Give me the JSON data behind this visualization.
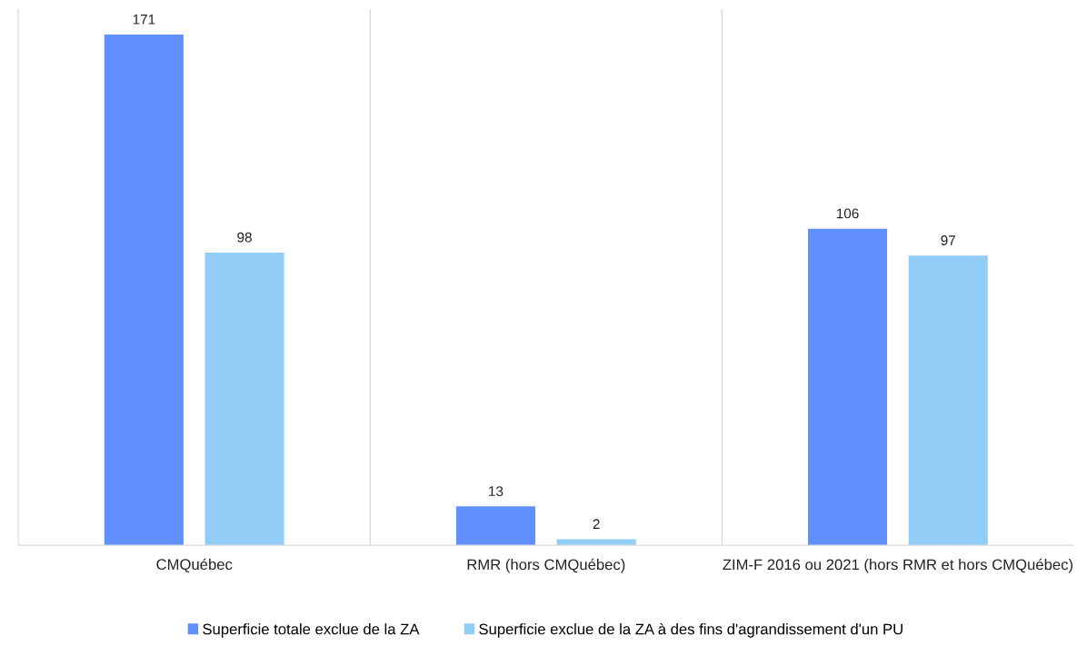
{
  "chart_data": {
    "type": "bar",
    "relative": false,
    "categories": [
      "CMQuébec",
      "RMR (hors CMQuébec)",
      "ZIM-F 2016 ou 2021 (hors RMR et hors CMQuébec)"
    ],
    "series": [
      {
        "name": "Superficie totale exclue de la ZA",
        "color": "#5f90fd",
        "values": [
          171,
          13,
          106
        ]
      },
      {
        "name": "Superficie exclue de la ZA à des fins d'agrandissement d'un PU",
        "color": "#92cdf8",
        "values": [
          98,
          2,
          97
        ]
      }
    ],
    "data_labels": true,
    "grid": "x",
    "legend": "bottom",
    "tick_labels": "x"
  }
}
